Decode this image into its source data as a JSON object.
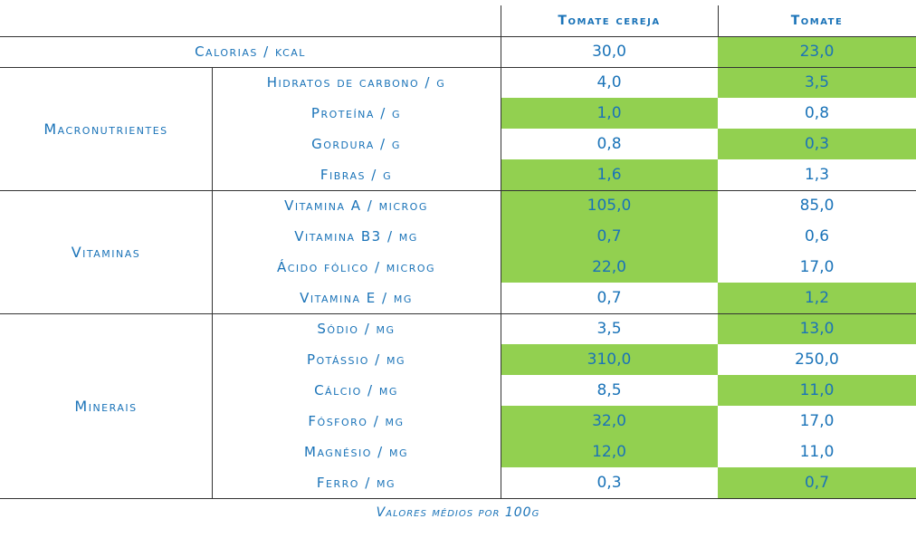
{
  "columns": [
    "Tomate cereja",
    "Tomate"
  ],
  "calories": {
    "label": "Calorias / kcal",
    "values": [
      "30,0",
      "23,0"
    ],
    "highlight": 1
  },
  "groups": [
    {
      "name": "Macronutrientes",
      "rows": [
        {
          "label": "Hidratos de carbono / g",
          "values": [
            "4,0",
            "3,5"
          ],
          "highlight": 1
        },
        {
          "label": "Proteína / g",
          "values": [
            "1,0",
            "0,8"
          ],
          "highlight": 0
        },
        {
          "label": "Gordura / g",
          "values": [
            "0,8",
            "0,3"
          ],
          "highlight": 1
        },
        {
          "label": "Fibras / g",
          "values": [
            "1,6",
            "1,3"
          ],
          "highlight": 0
        }
      ]
    },
    {
      "name": "Vitaminas",
      "rows": [
        {
          "label": "Vitamina A / microg",
          "values": [
            "105,0",
            "85,0"
          ],
          "highlight": 0
        },
        {
          "label": "Vitamina B3 / mg",
          "values": [
            "0,7",
            "0,6"
          ],
          "highlight": 0
        },
        {
          "label": "Ácido fólico / microg",
          "values": [
            "22,0",
            "17,0"
          ],
          "highlight": 0
        },
        {
          "label": "Vitamina E / mg",
          "values": [
            "0,7",
            "1,2"
          ],
          "highlight": 1
        }
      ]
    },
    {
      "name": "Minerais",
      "rows": [
        {
          "label": "Sódio / mg",
          "values": [
            "3,5",
            "13,0"
          ],
          "highlight": 1
        },
        {
          "label": "Potássio / mg",
          "values": [
            "310,0",
            "250,0"
          ],
          "highlight": 0
        },
        {
          "label": "Cálcio / mg",
          "values": [
            "8,5",
            "11,0"
          ],
          "highlight": 1
        },
        {
          "label": "Fósforo / mg",
          "values": [
            "32,0",
            "17,0"
          ],
          "highlight": 0
        },
        {
          "label": "Magnésio / mg",
          "values": [
            "12,0",
            "11,0"
          ],
          "highlight": 0
        },
        {
          "label": "Ferro / mg",
          "values": [
            "0,3",
            "0,7"
          ],
          "highlight": 1
        }
      ]
    }
  ],
  "caption": "Valores médios por 100g",
  "colors": {
    "text": "#1a73b8",
    "highlight": "#92d050",
    "lines": "#333333"
  }
}
